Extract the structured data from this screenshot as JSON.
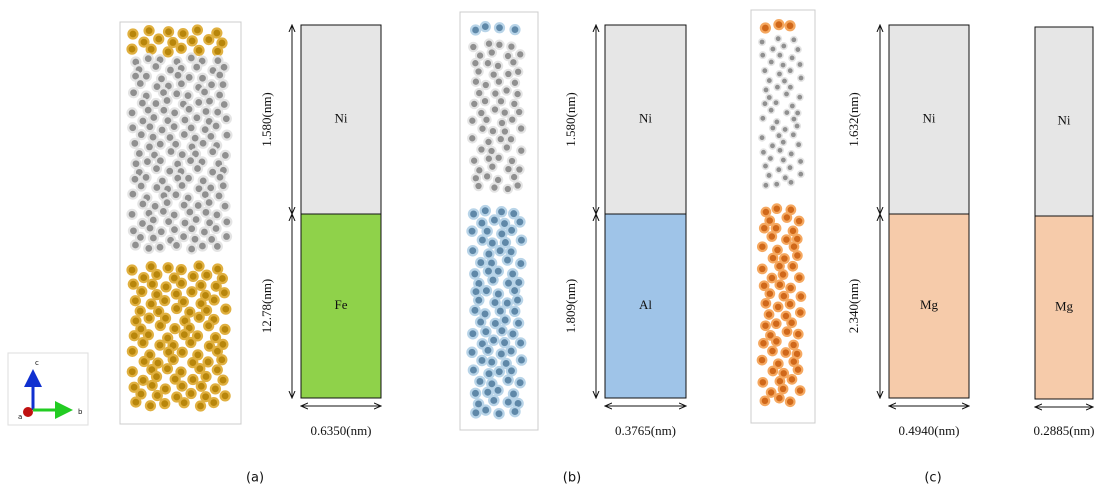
{
  "axes": {
    "c": "c",
    "a": "a",
    "b": "b"
  },
  "panels": [
    {
      "label": "(a)",
      "cells": [
        {
          "top": "Ni",
          "top_height": "1.580(nm)",
          "bottom": "Fe",
          "bottom_height": "12.78(nm)",
          "width": "0.6350(nm)",
          "bottom_color": "#8fd24a"
        }
      ]
    },
    {
      "label": "(b)",
      "cells": [
        {
          "top": "Ni",
          "top_height": "1.580(nm)",
          "bottom": "Al",
          "bottom_height": "1.809(nm)",
          "width": "0.3765(nm)",
          "bottom_color": "#9fc4e8"
        }
      ]
    },
    {
      "label": "(c)",
      "cells": [
        {
          "top": "Ni",
          "top_height": "1.632(nm)",
          "bottom": "Mg",
          "bottom_height": "2.340(nm)",
          "width": "0.4940(nm)",
          "bottom_color": "#f6cbaa"
        },
        {
          "top": "Ni",
          "bottom": "Mg",
          "width": "0.2885(nm)",
          "bottom_color": "#f6cbaa"
        }
      ]
    }
  ]
}
